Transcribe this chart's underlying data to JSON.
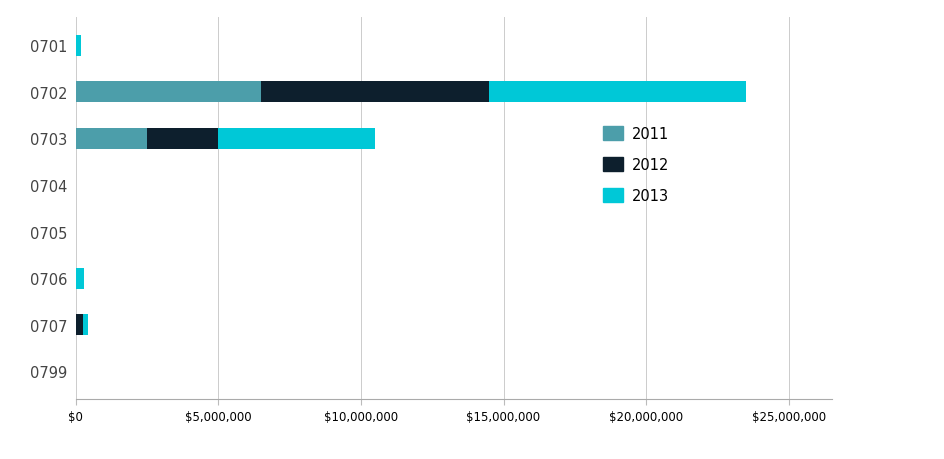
{
  "categories": [
    "0701",
    "0702",
    "0703",
    "0704",
    "0705",
    "0706",
    "0707",
    "0799"
  ],
  "series": {
    "2011": [
      0,
      6500000,
      2500000,
      0,
      0,
      0,
      0,
      0
    ],
    "2012": [
      0,
      8000000,
      2500000,
      0,
      0,
      0,
      250000,
      0
    ],
    "2013": [
      180000,
      9000000,
      5500000,
      0,
      0,
      280000,
      200000,
      0
    ]
  },
  "colors": {
    "2011": "#4c9eaa",
    "2012": "#0d1f2d",
    "2013": "#00c8d7"
  },
  "xlim": [
    0,
    26500000
  ],
  "background_color": "#ffffff",
  "legend_order": [
    "2011",
    "2012",
    "2013"
  ],
  "tick_interval": 5000000
}
